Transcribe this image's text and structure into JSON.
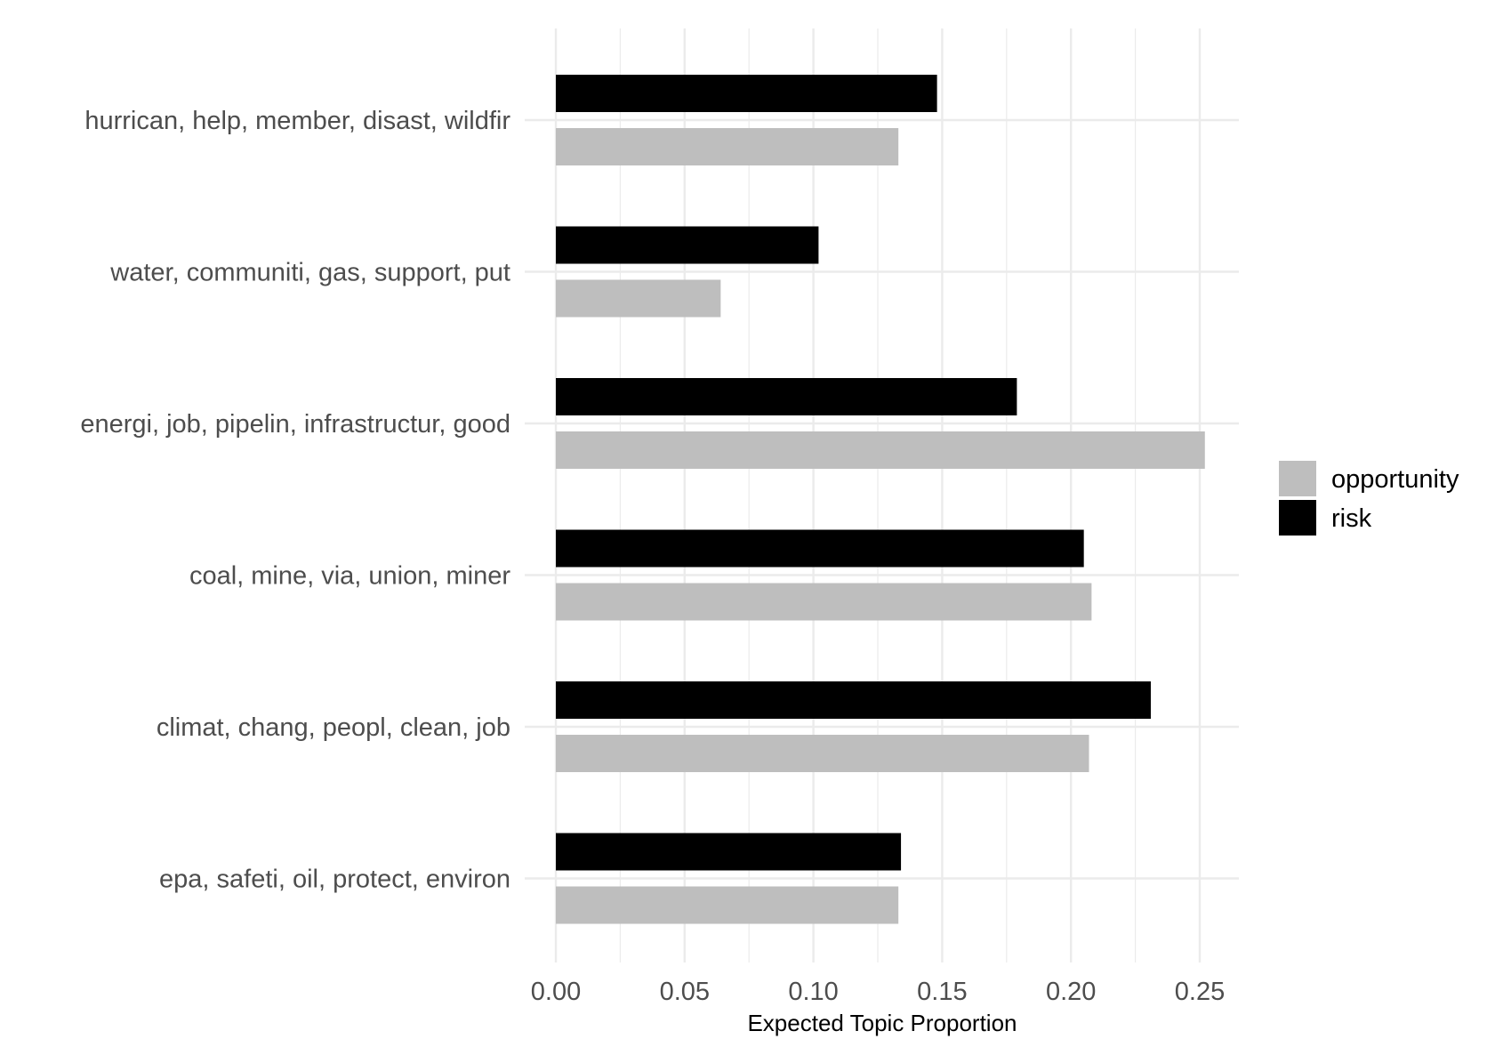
{
  "chart_data": {
    "type": "bar",
    "orientation": "horizontal",
    "title": "",
    "xlabel": "Expected Topic Proportion",
    "ylabel": "",
    "categories": [
      "hurrican, help, member, disast, wildfir",
      "water, communiti, gas, support, put",
      "energi, job, pipelin, infrastructur, good",
      "coal, mine, via, union, miner",
      "climat, chang, peopl, clean, job",
      "epa, safeti, oil, protect, environ"
    ],
    "series": [
      {
        "name": "risk",
        "color": "#000000",
        "values": [
          0.148,
          0.102,
          0.179,
          0.205,
          0.231,
          0.134
        ]
      },
      {
        "name": "opportunity",
        "color": "#bebebe",
        "values": [
          0.133,
          0.064,
          0.252,
          0.208,
          0.207,
          0.133
        ]
      }
    ],
    "xlim": [
      0,
      0.265
    ],
    "xticks": [
      "0.00",
      "0.05",
      "0.10",
      "0.15",
      "0.20",
      "0.25"
    ],
    "grid": true,
    "legend": {
      "position": "right",
      "entries": [
        {
          "label": "opportunity",
          "color": "#bebebe"
        },
        {
          "label": "risk",
          "color": "#000000"
        }
      ]
    }
  }
}
